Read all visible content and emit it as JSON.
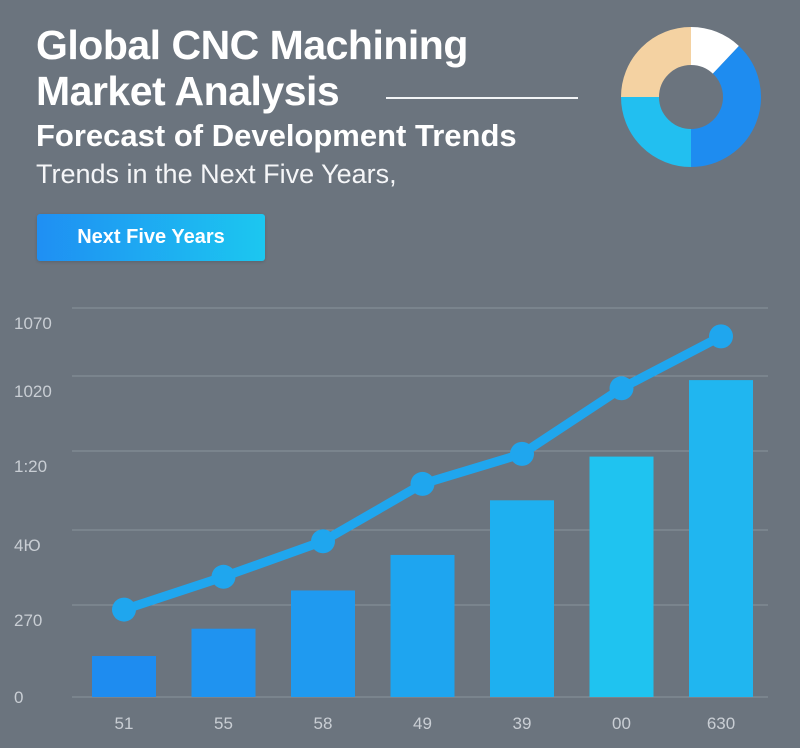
{
  "header": {
    "title_line1": "Global CNC Machining",
    "title_line2": "Market Analysis",
    "subtitle": "Forecast of Development Trends",
    "tagline": "Trends in the Next Five Years,",
    "badge": "Next Five Years"
  },
  "colors": {
    "background": "#6b747e",
    "line": "#1fa6ee",
    "bars": [
      "#1e8cf0",
      "#1f93f0",
      "#1f9af0",
      "#1ea5f0",
      "#1eb0f0",
      "#1fc3f0",
      "#20b6f0"
    ],
    "donut": [
      "#ffffff",
      "#1e8cf0",
      "#22bff0",
      "#f4d2a2"
    ]
  },
  "donut_chart": {
    "values": [
      12,
      38,
      25,
      25
    ]
  },
  "chart_data": {
    "type": "bar",
    "categories": [
      "51",
      "55",
      "58",
      "49",
      "39",
      "00",
      "630"
    ],
    "values": [
      75,
      125,
      195,
      260,
      360,
      440,
      580
    ],
    "line_values": [
      160,
      220,
      285,
      390,
      445,
      565,
      660
    ],
    "y_ticks": [
      "0",
      "270",
      "4Ю",
      "1:20",
      "1020",
      "1070"
    ],
    "ylim": [
      0,
      690
    ],
    "grid": true
  }
}
